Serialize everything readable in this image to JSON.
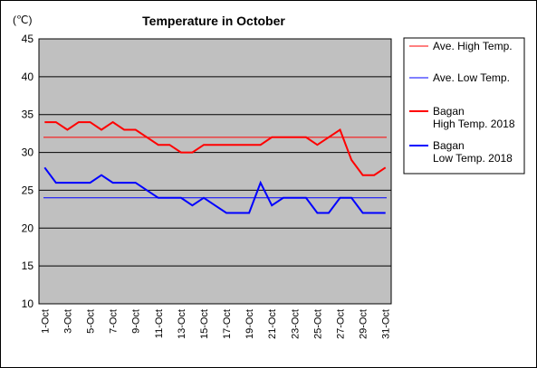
{
  "chart_data": {
    "type": "line",
    "title": "Temperature in October",
    "unit_label": "(℃)",
    "ylim": [
      10,
      45
    ],
    "y_ticks": [
      10,
      15,
      20,
      25,
      30,
      35,
      40,
      45
    ],
    "x_tick_labels": [
      "1-Oct",
      "3-Oct",
      "5-Oct",
      "7-Oct",
      "9-Oct",
      "11-Oct",
      "13-Oct",
      "15-Oct",
      "17-Oct",
      "19-Oct",
      "21-Oct",
      "23-Oct",
      "25-Oct",
      "27-Oct",
      "29-Oct",
      "31-Oct"
    ],
    "x": [
      1,
      2,
      3,
      4,
      5,
      6,
      7,
      8,
      9,
      10,
      11,
      12,
      13,
      14,
      15,
      16,
      17,
      18,
      19,
      20,
      21,
      22,
      23,
      24,
      25,
      26,
      27,
      28,
      29,
      30,
      31
    ],
    "plot_background": "#c0c0c0",
    "grid": "horizontal",
    "legend_position": "right",
    "series": [
      {
        "name": "Ave. High Temp.",
        "color": "#ff0000",
        "style": "thin",
        "values": [
          32,
          32,
          32,
          32,
          32,
          32,
          32,
          32,
          32,
          32,
          32,
          32,
          32,
          32,
          32,
          32,
          32,
          32,
          32,
          32,
          32,
          32,
          32,
          32,
          32,
          32,
          32,
          32,
          32,
          32,
          32
        ]
      },
      {
        "name": "Ave. Low Temp.",
        "color": "#0000ff",
        "style": "thin",
        "values": [
          24,
          24,
          24,
          24,
          24,
          24,
          24,
          24,
          24,
          24,
          24,
          24,
          24,
          24,
          24,
          24,
          24,
          24,
          24,
          24,
          24,
          24,
          24,
          24,
          24,
          24,
          24,
          24,
          24,
          24,
          24
        ]
      },
      {
        "name": "Bagan\nHigh Temp. 2018",
        "color": "#ff0000",
        "style": "thick",
        "values": [
          34,
          34,
          33,
          34,
          34,
          33,
          34,
          33,
          33,
          32,
          31,
          31,
          30,
          30,
          31,
          31,
          31,
          31,
          31,
          31,
          32,
          32,
          32,
          32,
          31,
          32,
          33,
          29,
          27,
          27,
          28
        ]
      },
      {
        "name": "Bagan\nLow Temp. 2018",
        "color": "#0000ff",
        "style": "thick",
        "values": [
          28,
          26,
          26,
          26,
          26,
          27,
          26,
          26,
          26,
          25,
          24,
          24,
          24,
          23,
          24,
          23,
          22,
          22,
          22,
          26,
          23,
          24,
          24,
          24,
          22,
          22,
          24,
          24,
          22,
          22,
          22
        ]
      }
    ]
  }
}
